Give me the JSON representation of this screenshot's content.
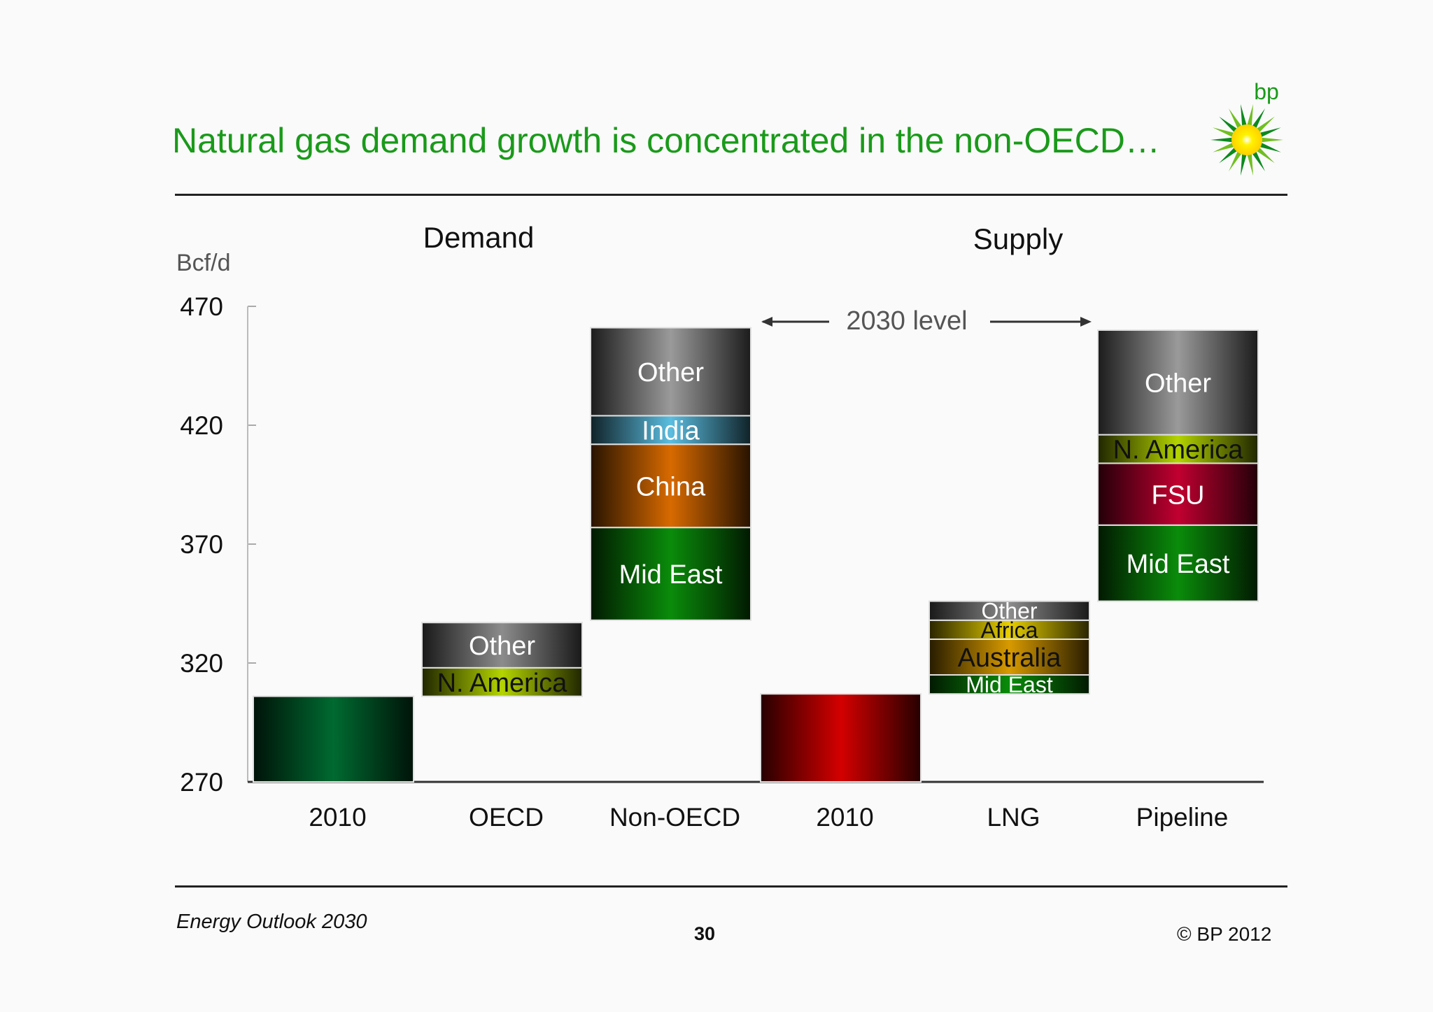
{
  "slide": {
    "title": "Natural gas demand growth is concentrated in the non-OECD…",
    "logo_text": "bp",
    "footer_left": "Energy Outlook 2030",
    "footer_page": "30",
    "footer_right": "© BP 2012"
  },
  "chart_data": {
    "type": "bar",
    "subtype": "waterfall-stacked",
    "title": "",
    "ylabel": "Bcf/d",
    "ylim": [
      270,
      470
    ],
    "yticks": [
      270,
      320,
      370,
      420,
      470
    ],
    "group_labels": [
      "Demand",
      "Supply"
    ],
    "annotation": "2030 level",
    "categories": [
      "2010",
      "OECD",
      "Non-OECD",
      "2010",
      "LNG",
      "Pipeline"
    ],
    "bars": [
      {
        "category": "2010",
        "group": "Demand",
        "segments": [
          {
            "label": "",
            "from": 270,
            "to": 306,
            "color": "#006a30"
          }
        ]
      },
      {
        "category": "OECD",
        "group": "Demand",
        "segments": [
          {
            "label": "N. America",
            "from": 306,
            "to": 318,
            "color": "#b4d400"
          },
          {
            "label": "Other",
            "from": 318,
            "to": 337,
            "color": "#8c8c8c"
          }
        ]
      },
      {
        "category": "Non-OECD",
        "group": "Demand",
        "segments": [
          {
            "label": "Mid East",
            "from": 338,
            "to": 377,
            "color": "#0a8c0a"
          },
          {
            "label": "China",
            "from": 377,
            "to": 412,
            "color": "#d86a00"
          },
          {
            "label": "India",
            "from": 412,
            "to": 424,
            "color": "#5bbde0"
          },
          {
            "label": "Other",
            "from": 424,
            "to": 461,
            "color": "#9a9a9a"
          }
        ]
      },
      {
        "category": "2010",
        "group": "Supply",
        "segments": [
          {
            "label": "",
            "from": 270,
            "to": 307,
            "color": "#d40000"
          }
        ]
      },
      {
        "category": "LNG",
        "group": "Supply",
        "segments": [
          {
            "label": "Mid East",
            "from": 307,
            "to": 315,
            "color": "#0a8c0a"
          },
          {
            "label": "Australia",
            "from": 315,
            "to": 330,
            "color": "#d89a00"
          },
          {
            "label": "Africa",
            "from": 330,
            "to": 338,
            "color": "#e8d000"
          },
          {
            "label": "Other",
            "from": 338,
            "to": 346,
            "color": "#8c8c8c"
          }
        ]
      },
      {
        "category": "Pipeline",
        "group": "Supply",
        "segments": [
          {
            "label": "Mid East",
            "from": 346,
            "to": 378,
            "color": "#0a8c0a"
          },
          {
            "label": "FSU",
            "from": 378,
            "to": 404,
            "color": "#c00030"
          },
          {
            "label": "N. America",
            "from": 404,
            "to": 416,
            "color": "#b4d400"
          },
          {
            "label": "Other",
            "from": 416,
            "to": 460,
            "color": "#9a9a9a"
          }
        ]
      }
    ]
  }
}
